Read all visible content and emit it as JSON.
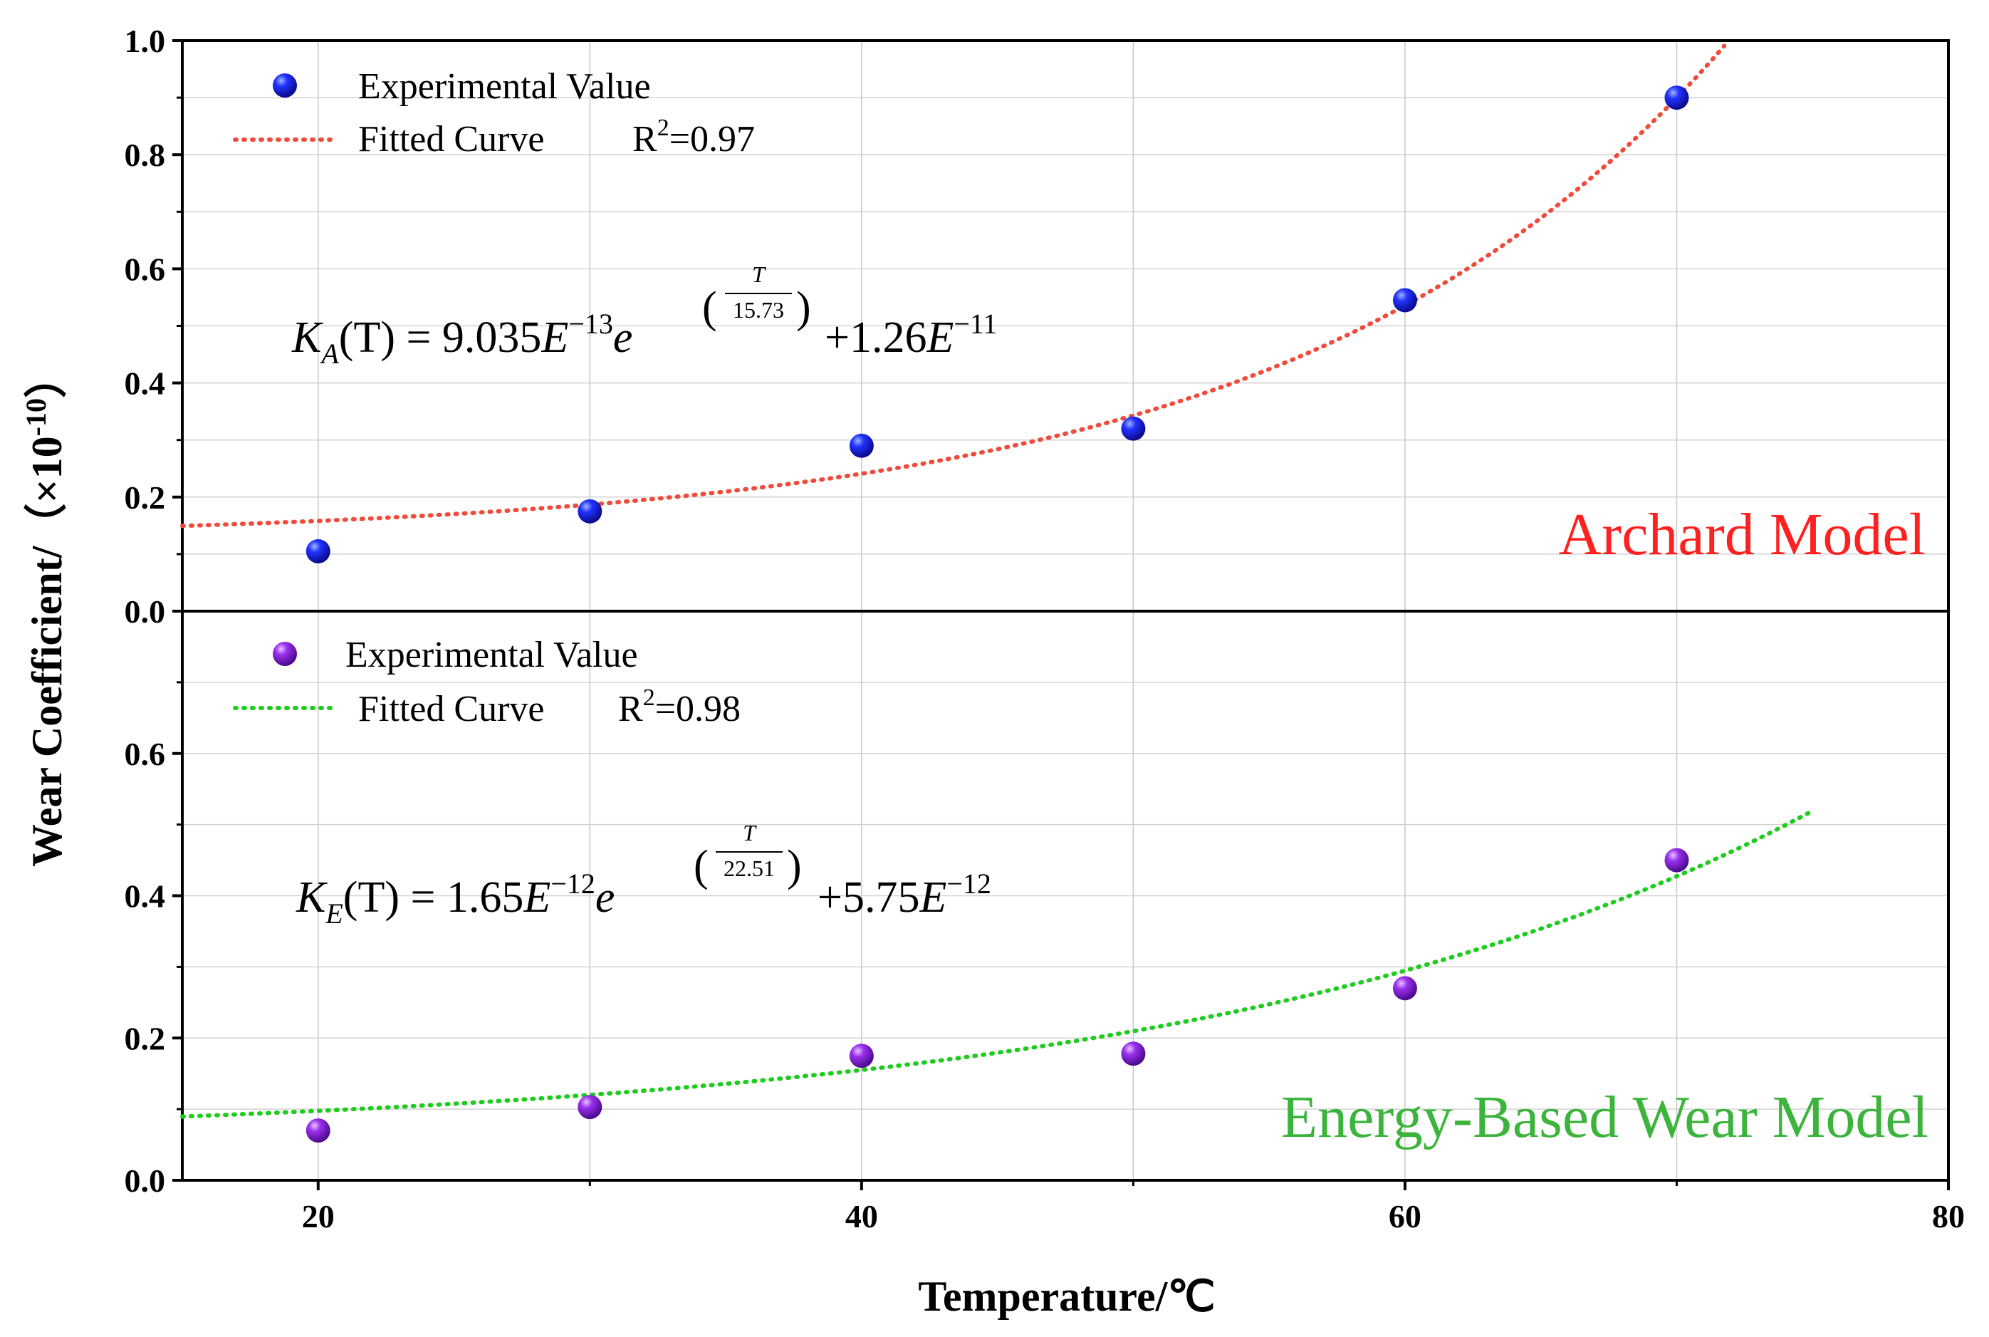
{
  "chart_data": [
    {
      "type": "scatter",
      "panel": "top",
      "model_label": "Archard Model",
      "model_color": "#ff2020",
      "series": [
        {
          "name": "Experimental Value",
          "marker_color": "#1010e0",
          "x": [
            20,
            30,
            40,
            50,
            60,
            70
          ],
          "y": [
            0.105,
            0.175,
            0.29,
            0.32,
            0.545,
            0.9
          ]
        },
        {
          "name": "Fitted Curve",
          "line_color": "#f04a3a",
          "line_style": "dotted",
          "r2_label": "R",
          "r2_sup": "2",
          "r2_value": "=0.97",
          "function": {
            "a": 0.009035,
            "b": 15.73,
            "c": 0.126
          },
          "x_range": [
            15,
            72.5
          ]
        }
      ],
      "equation": {
        "lhs": "K",
        "lhs_sub": "A",
        "lhs_arg": "(T) = 9.035",
        "e_base": "E",
        "e_exp": "−13",
        "exp_base": "e",
        "frac_num": "T",
        "frac_den": "15.73",
        "plus": "+1.26",
        "e2_base": "E",
        "e2_exp": "−11"
      },
      "ylim": [
        0,
        1.0
      ],
      "yticks": [
        "0.0",
        "0.2",
        "0.4",
        "0.6",
        "0.8",
        "1.0"
      ],
      "ytick_values": [
        0,
        0.2,
        0.4,
        0.6,
        0.8,
        1.0
      ]
    },
    {
      "type": "scatter",
      "panel": "bottom",
      "model_label": "Energy-Based Wear Model",
      "model_color": "#3cb43c",
      "series": [
        {
          "name": "Experimental Value",
          "marker_color": "#8a1ee6",
          "x": [
            20,
            30,
            40,
            50,
            60,
            70
          ],
          "y": [
            0.07,
            0.103,
            0.175,
            0.178,
            0.27,
            0.45
          ]
        },
        {
          "name": "Fitted Curve",
          "line_color": "#1ecc1e",
          "line_style": "dotted",
          "r2_label": "R",
          "r2_sup": "2",
          "r2_value": "=0.98",
          "function": {
            "a": 0.0165,
            "b": 22.51,
            "c": 0.0575
          },
          "x_range": [
            15,
            75
          ]
        }
      ],
      "equation": {
        "lhs": "K",
        "lhs_sub": "E",
        "lhs_arg": "(T) = 1.65",
        "e_base": "E",
        "e_exp": "−12",
        "exp_base": "e",
        "frac_num": "T",
        "frac_den": "22.51",
        "plus": "+5.75",
        "e2_base": "E",
        "e2_exp": "−12"
      },
      "ylim": [
        0,
        0.8
      ],
      "yticks": [
        "0.0",
        "0.2",
        "0.4",
        "0.6"
      ],
      "ytick_values": [
        0,
        0.2,
        0.4,
        0.6
      ]
    }
  ],
  "shared_axes": {
    "xlabel": "Temperature/℃",
    "ylabel": "Wear Coefficient/（×10",
    "ylabel_sup": "-10",
    "ylabel_close": "）",
    "xlim": [
      15,
      80
    ],
    "xticks": [
      "20",
      "40",
      "60",
      "80"
    ],
    "xtick_values": [
      20,
      40,
      60,
      80
    ],
    "grid": true
  }
}
